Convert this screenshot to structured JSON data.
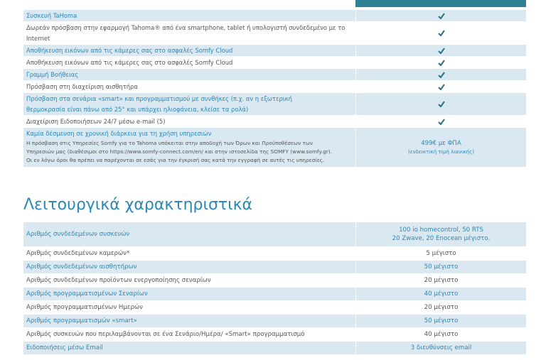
{
  "features_table": {
    "rows": [
      {
        "label": [
          "Συσκευή TaHoma"
        ]
      },
      {
        "label": [
          "Δωρεάν πρόσβαση στην εφαρμογή Tahoma® από ένα smartphone, tablet ή υπολογιστή συνδεδεμένο με το Internet"
        ]
      },
      {
        "label": [
          "Αποθήκευση εικόνων από τις κάμερες σας στο ασφαλές Somfy Cloud"
        ]
      },
      {
        "label": [
          "Αποθήκευση εικόνων από τις κάμερες σας στο ασφαλές Somfy Cloud"
        ]
      },
      {
        "label": [
          "Γραμμή Βοήθειας"
        ]
      },
      {
        "label": [
          "Πρόσβαση στη διαχείριση αισθητήρα"
        ]
      },
      {
        "label": [
          "Πρόσβαση στα σενάρια «smart» και προγραμματισμού με συνθήκες (π.χ. αν η εξωτερική",
          "θερμοκρασία είναι πάνω από 25° και υπάρχει ηλιοφάνεια, κλείσε τα ρολά)"
        ]
      },
      {
        "label": [
          "Διαχείριση Ειδοποιήσεων 24/7 μέσω e-mail (5)"
        ]
      },
      {
        "label": [
          "Καμία δέσμευση σε χρονική διάρκεια για τη χρήση υπηρεσιών"
        ],
        "details": [
          "Η πρόσβαση στις Υπηρεσίες Somfy για το Tahoma υπόκειται στην αποδοχή των Όρων και Προϋποθέσεων των",
          "Υπηρεσιών μας (διαθέσιμοι στο https://www.somfy-connect.com/en/ και στην ιστοσελίδα της SOMFY (www.somfy.gr).",
          "Οι εν λόγω όροι θα πρέπει να παρέχονται σε εσάς για την έγκρισή σας κατά την εγγραφή σε αυτές τις υπηρεσίες."
        ],
        "price": "499€ με ΦΠΑ",
        "price_note": "(ενδεικτική τιμή λιανικής)"
      }
    ]
  },
  "section_title": "Λειτουργικά χαρακτηριστικά",
  "specs_table": {
    "rows": [
      {
        "label": "Αριθμός συνδεδεμένων συσκευών",
        "value": [
          "100 io homecontrol, 50 RTS",
          "20 Zwave, 20 Enocean μέγιστο."
        ]
      },
      {
        "label": "Αριθμός συνδεδεμένων καμερών*",
        "value": [
          "5 μέγιστο"
        ]
      },
      {
        "label": "Αριθμός συνδεδεμένων αισθητήρων",
        "value": [
          "50 μέγιστο"
        ]
      },
      {
        "label": "Αριθμός συνδεδεμένων προϊόντων ενεργοποίησης σεναρίων",
        "value": [
          "20 μέγιστο"
        ]
      },
      {
        "label": "Αριθμός προγραμματισμένων Σεναρίων",
        "value": [
          "40 μέγιστο"
        ]
      },
      {
        "label": "Αριθμός προγραμματισμένων Ημερών",
        "value": [
          "20 μέγιστο"
        ]
      },
      {
        "label": "Αριθμός προγραμματισμών «smart»",
        "value": [
          "50 μέγιστο"
        ]
      },
      {
        "label": "Αριθμός συσκευών που περιλαμβάνονται σε ένα Σενάριο/Ημέρα/ «Smart» προγραμματισμό",
        "value": [
          "40 μέγιστο"
        ]
      },
      {
        "label": "Ειδοποιήσεις μέσω Email",
        "value": [
          "3 διευθύνσεις email"
        ]
      }
    ]
  }
}
